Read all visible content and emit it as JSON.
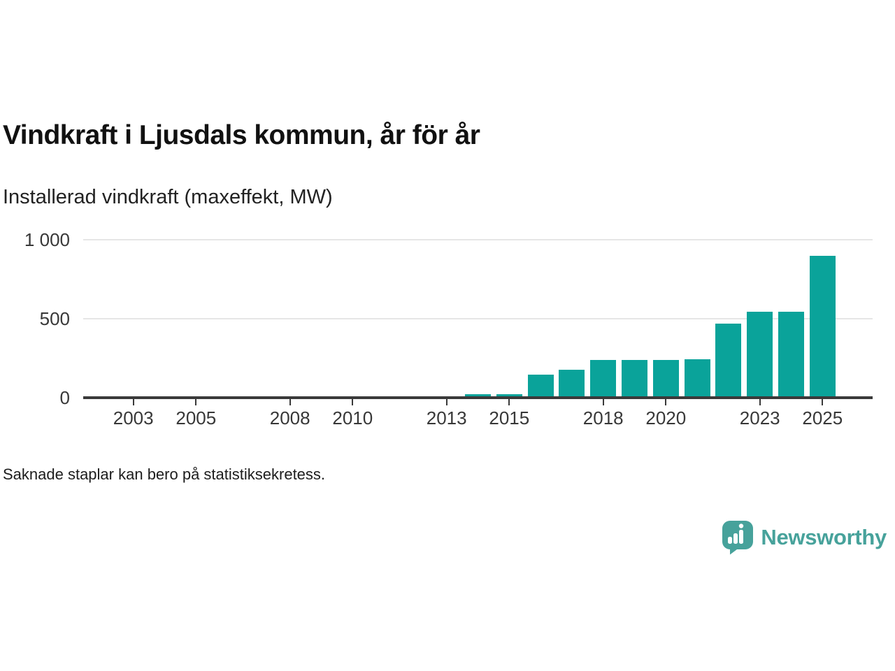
{
  "title": "Vindkraft i Ljusdals kommun, år för år",
  "subtitle": "Installerad vindkraft (maxeffekt, MW)",
  "footnote": "Saknade staplar kan bero på statistiksekretess.",
  "brand": {
    "name": "Newsworthy",
    "icon": "speech-bubble-bar-chart-icon",
    "color": "#47a29b"
  },
  "colors": {
    "bar": "#0aa39a",
    "axis": "#3a3a3a",
    "gridline": "#e6e6e6",
    "tick_text": "#383838"
  },
  "chart_data": {
    "type": "bar",
    "title": "Vindkraft i Ljusdals kommun, år för år",
    "ylabel": "Installerad vindkraft (maxeffekt, MW)",
    "unit": "MW",
    "years": [
      2014,
      2015,
      2016,
      2017,
      2018,
      2019,
      2020,
      2021,
      2022,
      2023,
      2024,
      2025
    ],
    "values": [
      20,
      20,
      145,
      175,
      240,
      240,
      240,
      245,
      470,
      545,
      545,
      900
    ],
    "x_ticks": [
      2003,
      2005,
      2008,
      2010,
      2013,
      2015,
      2018,
      2020,
      2023,
      2025
    ],
    "y_ticks": [
      0,
      500,
      1000
    ],
    "y_tick_labels": [
      "0",
      "500",
      "1 000"
    ],
    "y_gridlines": [
      500,
      1000
    ],
    "xlim": [
      2001.4,
      2026.6
    ],
    "ylim": [
      0,
      1000
    ],
    "grid": "horizontal",
    "legend": "none"
  }
}
